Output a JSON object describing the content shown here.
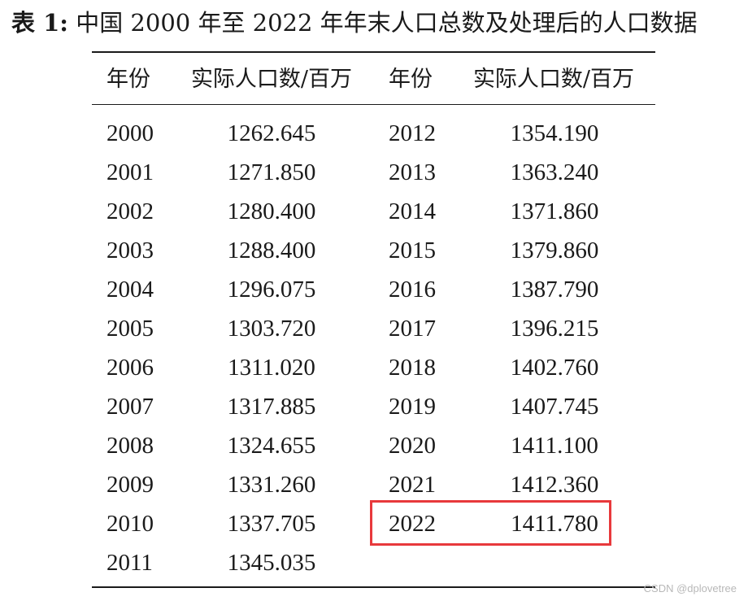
{
  "caption": {
    "label": "表 1:",
    "text": "中国 2000 年至 2022 年年末人口总数及处理后的人口数据"
  },
  "table": {
    "headers": {
      "year_left": "年份",
      "population_left": "实际人口数/百万",
      "year_right": "年份",
      "population_right": "实际人口数/百万"
    },
    "left_rows": [
      {
        "year": "2000",
        "population": "1262.645"
      },
      {
        "year": "2001",
        "population": "1271.850"
      },
      {
        "year": "2002",
        "population": "1280.400"
      },
      {
        "year": "2003",
        "population": "1288.400"
      },
      {
        "year": "2004",
        "population": "1296.075"
      },
      {
        "year": "2005",
        "population": "1303.720"
      },
      {
        "year": "2006",
        "population": "1311.020"
      },
      {
        "year": "2007",
        "population": "1317.885"
      },
      {
        "year": "2008",
        "population": "1324.655"
      },
      {
        "year": "2009",
        "population": "1331.260"
      },
      {
        "year": "2010",
        "population": "1337.705"
      },
      {
        "year": "2011",
        "population": "1345.035"
      }
    ],
    "right_rows": [
      {
        "year": "2012",
        "population": "1354.190"
      },
      {
        "year": "2013",
        "population": "1363.240"
      },
      {
        "year": "2014",
        "population": "1371.860"
      },
      {
        "year": "2015",
        "population": "1379.860"
      },
      {
        "year": "2016",
        "population": "1387.790"
      },
      {
        "year": "2017",
        "population": "1396.215"
      },
      {
        "year": "2018",
        "population": "1402.760"
      },
      {
        "year": "2019",
        "population": "1407.745"
      },
      {
        "year": "2020",
        "population": "1411.100"
      },
      {
        "year": "2021",
        "population": "1412.360"
      },
      {
        "year": "2022",
        "population": "1411.780"
      }
    ]
  },
  "highlight": {
    "color": "#e8393c",
    "row": "2022"
  },
  "watermark": "CSDN @dplovetree"
}
